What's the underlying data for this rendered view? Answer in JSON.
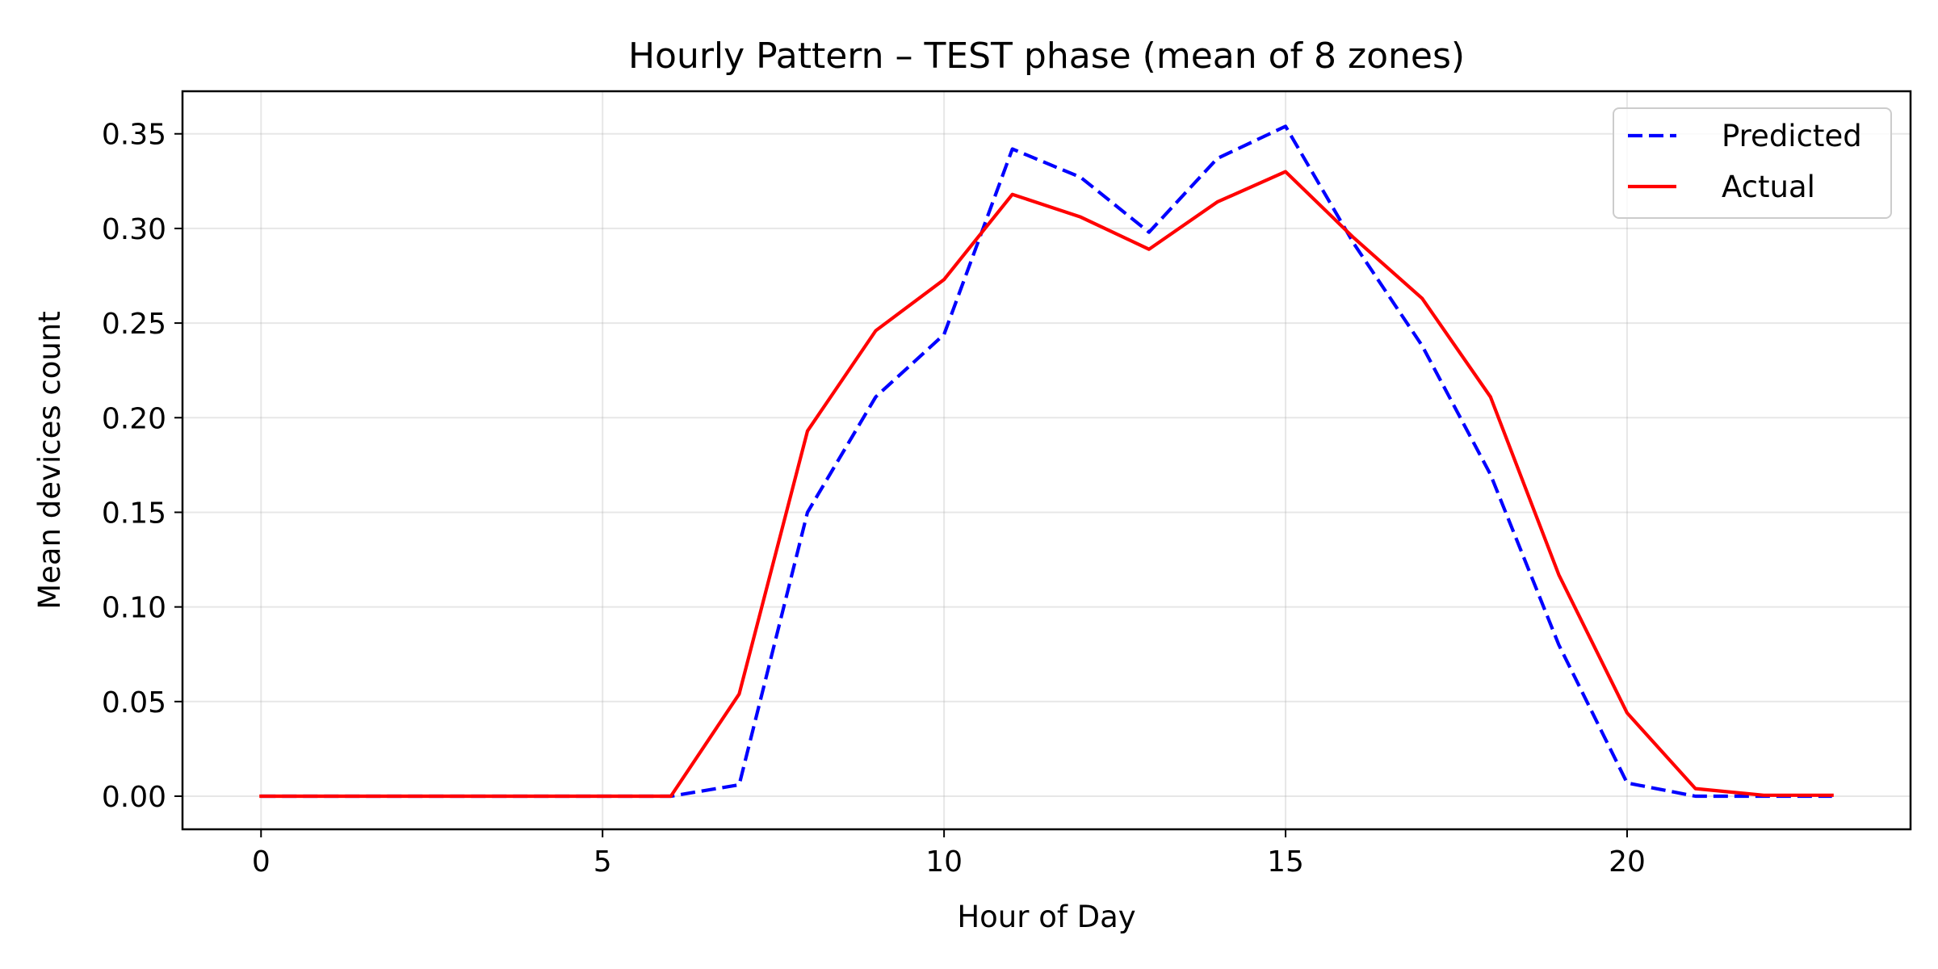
{
  "chart_data": {
    "type": "line",
    "title": "Hourly Pattern – TEST phase (mean of 8 zones)",
    "xlabel": "Hour of Day",
    "ylabel": "Mean devices count",
    "xlim": [
      -1.15,
      24.15
    ],
    "ylim": [
      -0.0175,
      0.3725
    ],
    "x_ticks": [
      0,
      5,
      10,
      15,
      20
    ],
    "y_ticks": [
      0.0,
      0.05,
      0.1,
      0.15,
      0.2,
      0.25,
      0.3,
      0.35
    ],
    "x_tick_labels": [
      "0",
      "5",
      "10",
      "15",
      "20"
    ],
    "y_tick_labels": [
      "0.00",
      "0.05",
      "0.10",
      "0.15",
      "0.20",
      "0.25",
      "0.30",
      "0.35"
    ],
    "grid": true,
    "legend_position": "top-right",
    "x": [
      0,
      1,
      2,
      3,
      4,
      5,
      6,
      7,
      8,
      9,
      10,
      11,
      12,
      13,
      14,
      15,
      16,
      17,
      18,
      19,
      20,
      21,
      22,
      23
    ],
    "series": [
      {
        "name": "Predicted",
        "color": "#0000ff",
        "style": "dashed",
        "values": [
          0,
          0,
          0,
          0,
          0,
          0,
          0,
          0.006,
          0.15,
          0.211,
          0.244,
          0.342,
          0.327,
          0.298,
          0.337,
          0.354,
          0.292,
          0.238,
          0.17,
          0.08,
          0.007,
          0,
          0,
          0
        ]
      },
      {
        "name": "Actual",
        "color": "#ff0000",
        "style": "solid",
        "values": [
          0,
          0,
          0,
          0,
          0,
          0,
          0,
          0.054,
          0.193,
          0.246,
          0.273,
          0.318,
          0.306,
          0.289,
          0.314,
          0.33,
          0.295,
          0.263,
          0.211,
          0.117,
          0.044,
          0.004,
          0.0005,
          0.0005
        ]
      }
    ]
  }
}
